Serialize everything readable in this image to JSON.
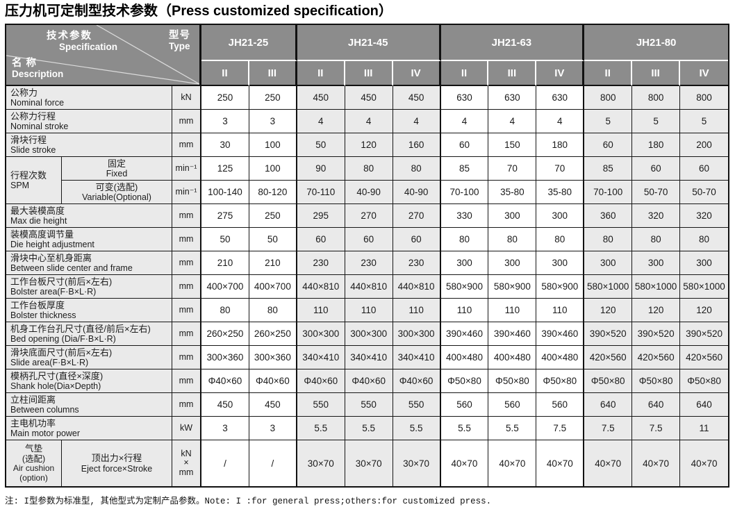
{
  "title": "压力机可定制型技术参数（Press customized specification）",
  "colors": {
    "header_gray": "#8c8c8c",
    "cell_gray": "#eaeaea",
    "border_black": "#161616",
    "header_separator_white": "#ffffff"
  },
  "header": {
    "corner": {
      "spec_zh": "技术参数",
      "spec_en": "Specification",
      "type_zh": "型号",
      "type_en": "Type",
      "desc_zh": "名 称",
      "desc_en": "Description"
    },
    "models": [
      {
        "name": "JH21-25",
        "variants": [
          "II",
          "III"
        ]
      },
      {
        "name": "JH21-45",
        "variants": [
          "II",
          "III",
          "IV"
        ]
      },
      {
        "name": "JH21-63",
        "variants": [
          "II",
          "III",
          "IV"
        ]
      },
      {
        "name": "JH21-80",
        "variants": [
          "II",
          "III",
          "IV"
        ]
      }
    ]
  },
  "rows": [
    {
      "zh": "公称力",
      "en": "Nominal force",
      "unit": "kN",
      "values": [
        "250",
        "250",
        "450",
        "450",
        "450",
        "630",
        "630",
        "630",
        "800",
        "800",
        "800"
      ]
    },
    {
      "zh": "公称力行程",
      "en": "Nominal stroke",
      "unit": "mm",
      "values": [
        "3",
        "3",
        "4",
        "4",
        "4",
        "4",
        "4",
        "4",
        "5",
        "5",
        "5"
      ]
    },
    {
      "zh": "滑块行程",
      "en": "Slide stroke",
      "unit": "mm",
      "values": [
        "30",
        "100",
        "50",
        "120",
        "160",
        "60",
        "150",
        "180",
        "60",
        "180",
        "200"
      ]
    },
    {
      "group_zh": "行程次数",
      "group_en": "SPM",
      "group_rowspan": 2,
      "sub_zh": "固定",
      "sub_en": "Fixed",
      "unit": "min⁻¹",
      "values": [
        "125",
        "100",
        "90",
        "80",
        "80",
        "85",
        "70",
        "70",
        "85",
        "60",
        "60"
      ]
    },
    {
      "sub_zh": "可变(选配)",
      "sub_en": "Variable(Optional)",
      "unit": "min⁻¹",
      "values": [
        "100-140",
        "80-120",
        "70-110",
        "40-90",
        "40-90",
        "70-100",
        "35-80",
        "35-80",
        "70-100",
        "50-70",
        "50-70"
      ]
    },
    {
      "zh": "最大装模高度",
      "en": "Max die height",
      "unit": "mm",
      "values": [
        "275",
        "250",
        "295",
        "270",
        "270",
        "330",
        "300",
        "300",
        "360",
        "320",
        "320"
      ]
    },
    {
      "zh": "装模高度调节量",
      "en": "Die height adjustment",
      "unit": "mm",
      "values": [
        "50",
        "50",
        "60",
        "60",
        "60",
        "80",
        "80",
        "80",
        "80",
        "80",
        "80"
      ]
    },
    {
      "zh": "滑块中心至机身距离",
      "en": "Between slide center and frame",
      "unit": "mm",
      "values": [
        "210",
        "210",
        "230",
        "230",
        "230",
        "300",
        "300",
        "300",
        "300",
        "300",
        "300"
      ]
    },
    {
      "zh": "工作台板尺寸(前后×左右)",
      "en": "Bolster area(F·B×L·R)",
      "unit": "mm",
      "values": [
        "400×700",
        "400×700",
        "440×810",
        "440×810",
        "440×810",
        "580×900",
        "580×900",
        "580×900",
        "580×1000",
        "580×1000",
        "580×1000"
      ]
    },
    {
      "zh": "工作台板厚度",
      "en": "Bolster thickness",
      "unit": "mm",
      "values": [
        "80",
        "80",
        "110",
        "110",
        "110",
        "110",
        "110",
        "110",
        "120",
        "120",
        "120"
      ]
    },
    {
      "zh": "机身工作台孔尺寸(直径/前后×左右)",
      "en": "Bed opening (Dia/F·B×L·R)",
      "unit": "mm",
      "values": [
        "260×250",
        "260×250",
        "300×300",
        "300×300",
        "300×300",
        "390×460",
        "390×460",
        "390×460",
        "390×520",
        "390×520",
        "390×520"
      ]
    },
    {
      "zh": "滑块底面尺寸(前后×左右)",
      "en": "Slide area(F·B×L·R)",
      "unit": "mm",
      "values": [
        "300×360",
        "300×360",
        "340×410",
        "340×410",
        "340×410",
        "400×480",
        "400×480",
        "400×480",
        "420×560",
        "420×560",
        "420×560"
      ]
    },
    {
      "zh": "模柄孔尺寸(直径×深度)",
      "en": "Shank hole(Dia×Depth)",
      "unit": "mm",
      "values": [
        "Φ40×60",
        "Φ40×60",
        "Φ40×60",
        "Φ40×60",
        "Φ40×60",
        "Φ50×80",
        "Φ50×80",
        "Φ50×80",
        "Φ50×80",
        "Φ50×80",
        "Φ50×80"
      ]
    },
    {
      "zh": "立柱间距离",
      "en": "Between columns",
      "unit": "mm",
      "values": [
        "450",
        "450",
        "550",
        "550",
        "550",
        "560",
        "560",
        "560",
        "640",
        "640",
        "640"
      ]
    },
    {
      "zh": "主电机功率",
      "en": "Main motor power",
      "unit": "kW",
      "values": [
        "3",
        "3",
        "5.5",
        "5.5",
        "5.5",
        "5.5",
        "5.5",
        "7.5",
        "7.5",
        "7.5",
        "11"
      ]
    },
    {
      "group_zh": "气垫\n(选配)",
      "group_en": "Air cushion\n(option)",
      "tall": true,
      "sub_zh": "顶出力×行程",
      "sub_en": "Eject force×Stroke",
      "unit": "kN\n×\nmm",
      "values": [
        "/",
        "/",
        "30×70",
        "30×70",
        "30×70",
        "40×70",
        "40×70",
        "40×70",
        "40×70",
        "40×70",
        "40×70"
      ]
    }
  ],
  "note": "注: I型参数为标准型, 其他型式为定制产品参数。Note: I :for general press;others:for customized press."
}
